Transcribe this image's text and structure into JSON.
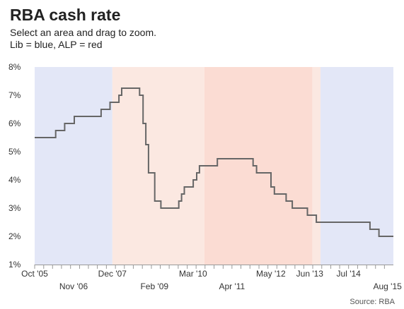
{
  "chart_data": {
    "type": "line",
    "title": "RBA cash rate",
    "subtitle_lines": [
      "Select an area and drag to zoom.",
      "Lib = blue, ALP = red"
    ],
    "source": "Source: RBA",
    "xlabel": "",
    "ylabel": "",
    "ylim": [
      1,
      8
    ],
    "y_ticks": [
      "1%",
      "2%",
      "3%",
      "4%",
      "5%",
      "6%",
      "7%",
      "8%"
    ],
    "x_range": [
      "2005-10-01",
      "2015-09-30"
    ],
    "x_ticks_top": [
      {
        "date": "2005-10-01",
        "label": "Oct '05"
      },
      {
        "date": "2007-12-01",
        "label": "Dec '07"
      },
      {
        "date": "2010-03-01",
        "label": "Mar '10"
      },
      {
        "date": "2012-05-01",
        "label": "May '12"
      },
      {
        "date": "2013-06-01",
        "label": "Jun '13"
      },
      {
        "date": "2014-07-01",
        "label": "Jul '14"
      }
    ],
    "x_ticks_bottom": [
      {
        "date": "2006-11-01",
        "label": "Nov '06"
      },
      {
        "date": "2009-02-01",
        "label": "Feb '09"
      },
      {
        "date": "2011-04-01",
        "label": "Apr '11"
      },
      {
        "date": "2015-08-01",
        "label": "Aug '15"
      }
    ],
    "bands": [
      {
        "from": "2005-10-01",
        "to": "2007-12-01",
        "party": "Lib",
        "color": "#e3e7f7"
      },
      {
        "from": "2007-12-01",
        "to": "2010-06-24",
        "party": "ALP",
        "color": "#fbe8e1"
      },
      {
        "from": "2010-06-24",
        "to": "2013-06-27",
        "party": "ALP",
        "color": "#fbdcd3"
      },
      {
        "from": "2013-06-27",
        "to": "2013-09-18",
        "party": "ALP",
        "color": "#fbe8e1"
      },
      {
        "from": "2013-09-18",
        "to": "2015-09-30",
        "party": "Lib",
        "color": "#e3e7f7"
      }
    ],
    "line_color": "#666666",
    "series": [
      {
        "x": [
          "2005-10-01",
          "2006-05-03",
          "2006-08-02",
          "2006-11-08",
          "2007-08-08",
          "2007-11-07",
          "2008-02-06",
          "2008-03-05",
          "2008-09-03",
          "2008-10-08",
          "2008-11-05",
          "2008-12-03",
          "2009-02-04",
          "2009-04-08",
          "2009-10-07",
          "2009-11-04",
          "2009-12-02",
          "2010-03-03",
          "2010-04-07",
          "2010-05-05",
          "2010-11-03",
          "2011-11-02",
          "2011-12-07",
          "2012-05-02",
          "2012-06-06",
          "2012-10-03",
          "2012-12-05",
          "2013-05-08",
          "2013-08-07",
          "2015-02-04",
          "2015-05-06",
          "2015-09-30"
        ],
        "y": [
          5.5,
          5.75,
          6.0,
          6.25,
          6.5,
          6.75,
          7.0,
          7.25,
          7.0,
          6.0,
          5.25,
          4.25,
          3.25,
          3.0,
          3.25,
          3.5,
          3.75,
          4.0,
          4.25,
          4.5,
          4.75,
          4.5,
          4.25,
          3.75,
          3.5,
          3.25,
          3.0,
          2.75,
          2.5,
          2.25,
          2.0,
          2.0
        ]
      }
    ]
  }
}
